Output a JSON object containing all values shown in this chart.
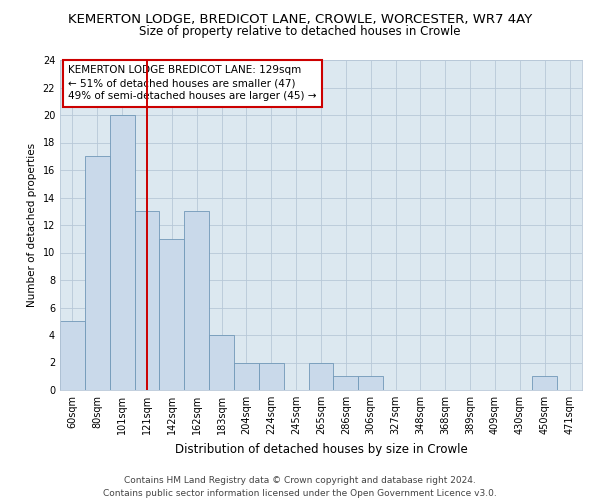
{
  "title": "KEMERTON LODGE, BREDICOT LANE, CROWLE, WORCESTER, WR7 4AY",
  "subtitle": "Size of property relative to detached houses in Crowle",
  "xlabel": "Distribution of detached houses by size in Crowle",
  "ylabel": "Number of detached properties",
  "categories": [
    "60sqm",
    "80sqm",
    "101sqm",
    "121sqm",
    "142sqm",
    "162sqm",
    "183sqm",
    "204sqm",
    "224sqm",
    "245sqm",
    "265sqm",
    "286sqm",
    "306sqm",
    "327sqm",
    "348sqm",
    "368sqm",
    "389sqm",
    "409sqm",
    "430sqm",
    "450sqm",
    "471sqm"
  ],
  "values": [
    5,
    17,
    20,
    13,
    11,
    13,
    4,
    2,
    2,
    0,
    2,
    1,
    1,
    0,
    0,
    0,
    0,
    0,
    0,
    1,
    0
  ],
  "bar_color": "#c9d9ea",
  "bar_edge_color": "#7098b8",
  "vline_x": 3,
  "vline_color": "#cc0000",
  "ylim": [
    0,
    24
  ],
  "yticks": [
    0,
    2,
    4,
    6,
    8,
    10,
    12,
    14,
    16,
    18,
    20,
    22,
    24
  ],
  "annotation_box_text": "KEMERTON LODGE BREDICOT LANE: 129sqm\n← 51% of detached houses are smaller (47)\n49% of semi-detached houses are larger (45) →",
  "annotation_box_color": "#ffffff",
  "annotation_box_edge": "#cc0000",
  "grid_color": "#b8c8d8",
  "bg_color": "#dce8f0",
  "footer_line1": "Contains HM Land Registry data © Crown copyright and database right 2024.",
  "footer_line2": "Contains public sector information licensed under the Open Government Licence v3.0.",
  "title_fontsize": 9.5,
  "subtitle_fontsize": 8.5,
  "xlabel_fontsize": 8.5,
  "ylabel_fontsize": 7.5,
  "tick_fontsize": 7,
  "annotation_fontsize": 7.5,
  "footer_fontsize": 6.5
}
